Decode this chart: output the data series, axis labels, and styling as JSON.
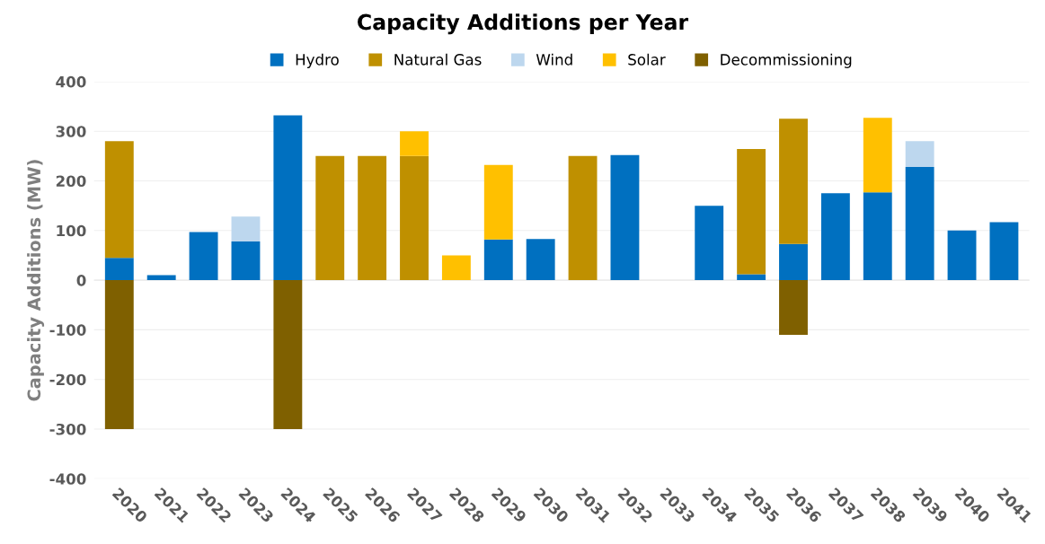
{
  "chart_data": {
    "type": "bar",
    "title": "Capacity Additions per Year",
    "ylabel": "Capacity Additions (MW)",
    "categories": [
      "2020",
      "2021",
      "2022",
      "2023",
      "2024",
      "2025",
      "2026",
      "2027",
      "2028",
      "2029",
      "2030",
      "2031",
      "2032",
      "2033",
      "2034",
      "2035",
      "2036",
      "2037",
      "2038",
      "2039",
      "2040",
      "2041"
    ],
    "stacked": true,
    "series": [
      {
        "name": "Hydro",
        "color": "#0070c0",
        "values": [
          45,
          10,
          97,
          78,
          332,
          null,
          null,
          null,
          null,
          82,
          83,
          null,
          252,
          null,
          150,
          12,
          73,
          175,
          177,
          228,
          100,
          117
        ]
      },
      {
        "name": "Natural Gas",
        "color": "#bf9000",
        "values": [
          235,
          null,
          null,
          null,
          null,
          250,
          250,
          250,
          null,
          null,
          null,
          250,
          null,
          null,
          null,
          252,
          252,
          null,
          null,
          null,
          null,
          null
        ]
      },
      {
        "name": "Wind",
        "color": "#bdd7ee",
        "values": [
          null,
          null,
          null,
          50,
          null,
          null,
          null,
          null,
          null,
          null,
          null,
          null,
          null,
          null,
          null,
          null,
          null,
          null,
          null,
          52,
          null,
          null
        ]
      },
      {
        "name": "Solar",
        "color": "#ffc000",
        "values": [
          null,
          null,
          null,
          null,
          null,
          null,
          null,
          50,
          50,
          150,
          null,
          null,
          null,
          null,
          null,
          null,
          null,
          null,
          150,
          null,
          null,
          null
        ]
      },
      {
        "name": "Decommissioning",
        "color": "#7f6000",
        "values": [
          -300,
          null,
          null,
          null,
          -300,
          null,
          null,
          null,
          null,
          null,
          null,
          null,
          null,
          null,
          null,
          null,
          -110,
          null,
          null,
          null,
          null,
          null
        ]
      }
    ],
    "ylim": [
      -400,
      400
    ],
    "yticks": [
      -400,
      -300,
      -200,
      -100,
      0,
      100,
      200,
      300,
      400
    ],
    "grid": "y",
    "legend": "top"
  }
}
